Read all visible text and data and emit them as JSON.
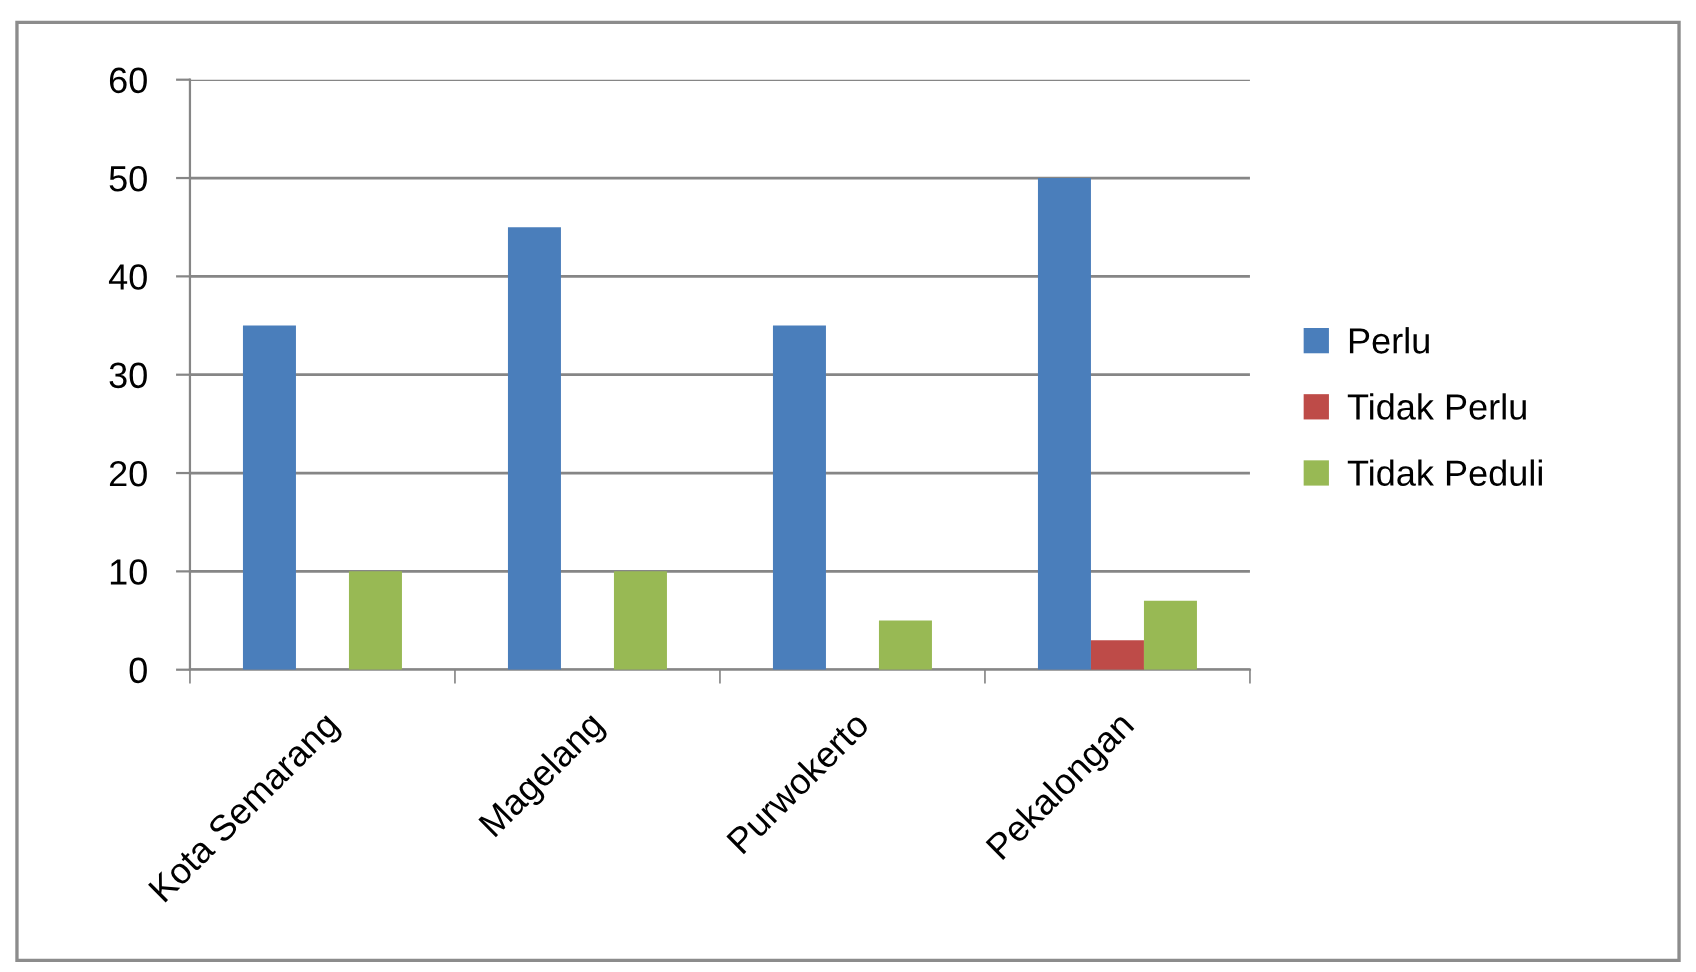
{
  "chart_data": {
    "type": "bar",
    "categories": [
      "Kota Semarang",
      "Magelang",
      "Purwokerto",
      "Pekalongan"
    ],
    "series": [
      {
        "name": "Perlu",
        "color": "#4a7ebb",
        "values": [
          35,
          45,
          35,
          50
        ]
      },
      {
        "name": "Tidak Perlu",
        "color": "#be4b48",
        "values": [
          null,
          null,
          null,
          3
        ]
      },
      {
        "name": "Tidak Peduli",
        "color": "#98b954",
        "values": [
          10,
          10,
          5,
          7
        ]
      }
    ],
    "ylim": [
      0,
      60
    ],
    "yticks": [
      0,
      10,
      20,
      30,
      40,
      50,
      60
    ],
    "grid": "y",
    "legend": "right"
  }
}
